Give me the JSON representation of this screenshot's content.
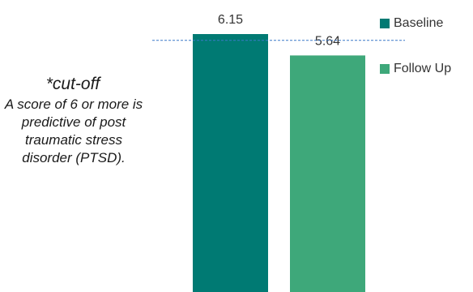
{
  "chart_data": {
    "type": "bar",
    "categories": [
      "Baseline",
      "Follow Up"
    ],
    "values": [
      6.15,
      5.64
    ],
    "data_labels": [
      "6.15",
      "5.64"
    ],
    "colors": [
      "#007a73",
      "#3ea87a"
    ],
    "cutoff": 6,
    "cutoff_color": "#3b78c8",
    "ylim": [
      0,
      7.0
    ],
    "legend": [
      "Baseline",
      "Follow Up"
    ],
    "legend_position": "top-right"
  },
  "note": {
    "heading": "*cut-off",
    "body": "A score of 6 or more is predictive of post traumatic stress disorder (PTSD)."
  }
}
